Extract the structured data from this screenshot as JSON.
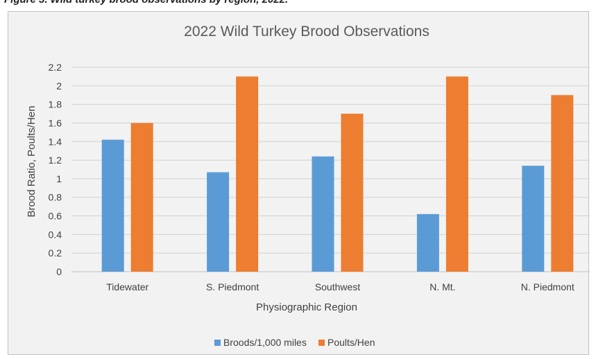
{
  "caption": "Figure 3. Wild turkey brood observations by region, 2022.",
  "chart_data": {
    "type": "bar",
    "title": "2022 Wild Turkey Brood Observations",
    "xlabel": "Physiographic Region",
    "ylabel": "Brood Ratio, Poults/Hen",
    "categories": [
      "Tidewater",
      "S. Piedmont",
      "Southwest",
      "N. Mt.",
      "N. Piedmont"
    ],
    "series": [
      {
        "name": "Broods/1,000 miles",
        "color": "#5b9bd5",
        "values": [
          1.42,
          1.07,
          1.24,
          0.62,
          1.14
        ]
      },
      {
        "name": "Poults/Hen",
        "color": "#ed7d31",
        "values": [
          1.6,
          2.1,
          1.7,
          2.1,
          1.9
        ]
      }
    ],
    "ylim": [
      0,
      2.2
    ],
    "yticks": [
      "0",
      "0.2",
      "0.4",
      "0.6",
      "0.8",
      "1",
      "1.2",
      "1.4",
      "1.6",
      "1.8",
      "2",
      "2.2"
    ],
    "grid": true,
    "legend_position": "bottom"
  }
}
